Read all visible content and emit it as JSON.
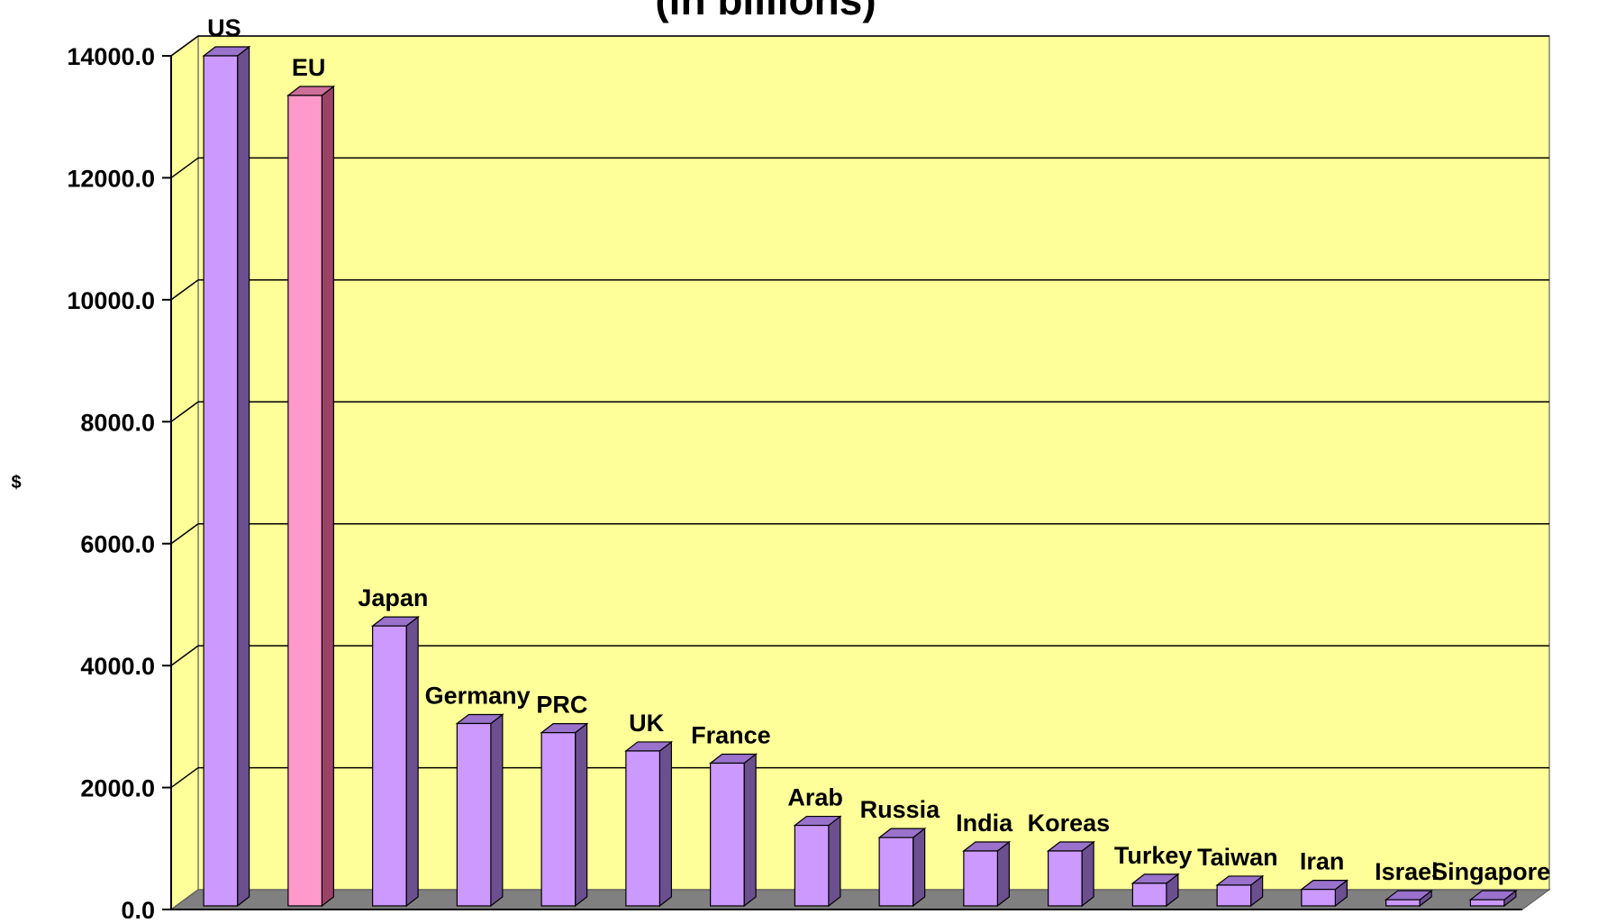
{
  "chart_data": {
    "type": "bar",
    "title": "(in billions)",
    "ylabel": "$",
    "xlabel": "",
    "ylim": [
      0,
      14000
    ],
    "yticks": [
      0,
      2000,
      4000,
      6000,
      8000,
      10000,
      12000,
      14000
    ],
    "ytick_labels": [
      "0.0",
      "2000.0",
      "4000.0",
      "6000.0",
      "8000.0",
      "10000.0",
      "12000.0",
      "14000.0"
    ],
    "categories": [
      "US",
      "EU",
      "Japan",
      "Germany",
      "PRC",
      "UK",
      "France",
      "Arab",
      "Russia",
      "India",
      "Koreas",
      "Turkey",
      "Taiwan",
      "Iran",
      "Israel",
      "Singapore"
    ],
    "values": [
      14000,
      13350,
      4650,
      3050,
      2900,
      2600,
      2400,
      1380,
      1180,
      960,
      960,
      430,
      400,
      330,
      160,
      160
    ],
    "highlight_category": "EU",
    "grid": true,
    "three_d": true,
    "colors": {
      "bar": "#cc99ff",
      "bar_side": "#6b4f8f",
      "bar_top": "#9a72cc",
      "highlight_bar": "#ff99cc",
      "highlight_side": "#994466",
      "highlight_top": "#cc6f9a",
      "plot_background": "#ffff99",
      "floor": "#808080",
      "gridline": "#000000"
    }
  }
}
